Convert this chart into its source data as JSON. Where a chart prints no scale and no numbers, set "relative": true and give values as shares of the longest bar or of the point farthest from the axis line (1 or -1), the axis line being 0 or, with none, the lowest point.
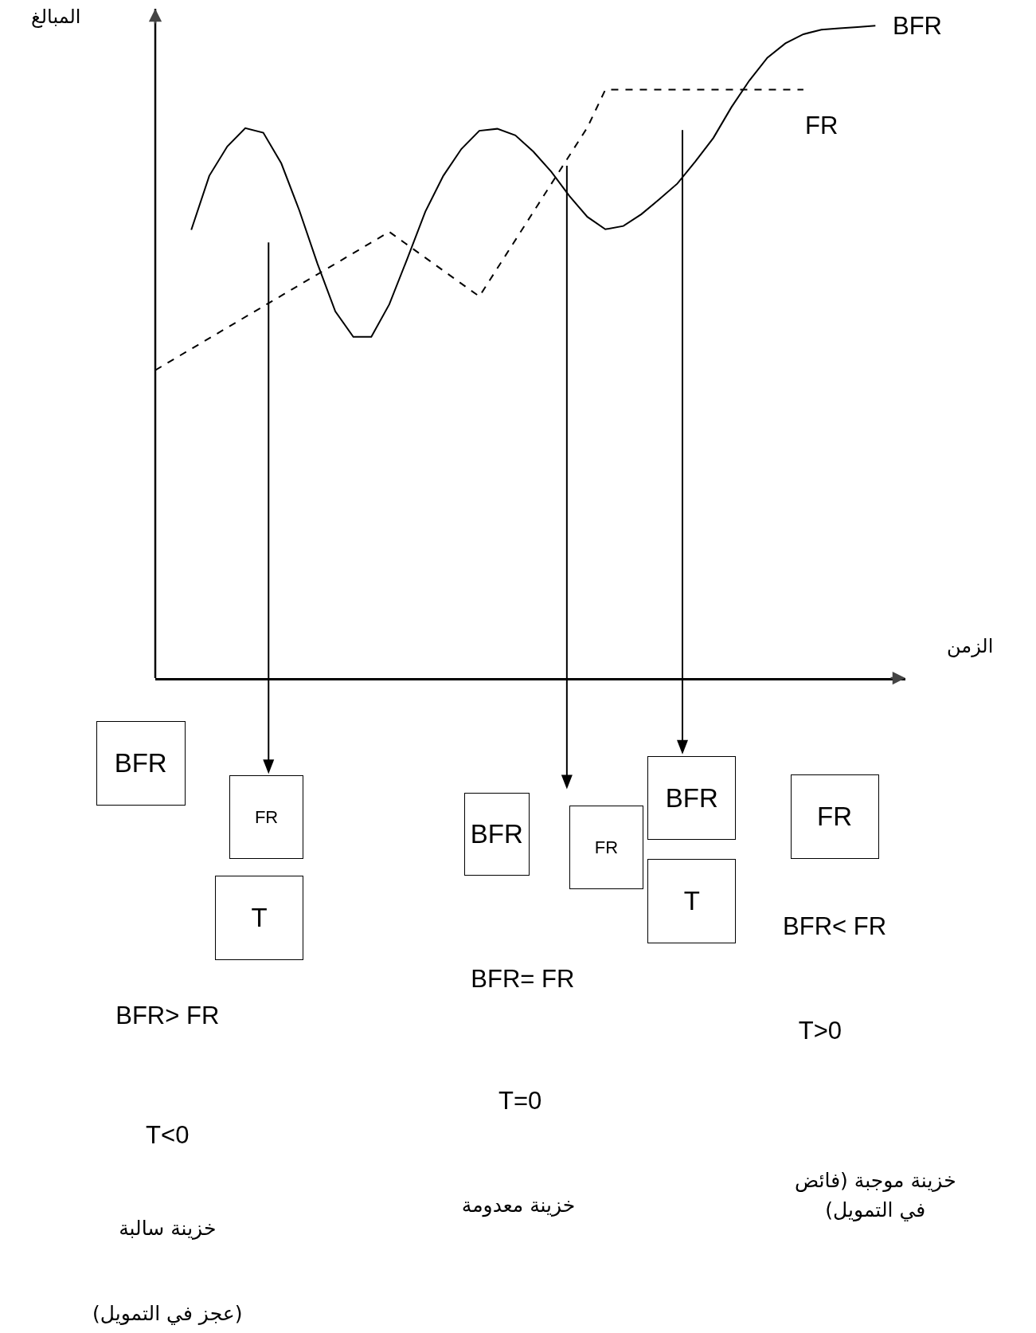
{
  "chart_data": {
    "type": "line",
    "relative": true,
    "xlabel": "الزمن",
    "ylabel": "المبالغ",
    "legend": false,
    "marker": "none",
    "categories": [
      null,
      null,
      null,
      null,
      null,
      null,
      null,
      null,
      null,
      null,
      null,
      null,
      null,
      null,
      null,
      null,
      null,
      null,
      null,
      null,
      null,
      null,
      null,
      null,
      null,
      null,
      null,
      null,
      null,
      null,
      null,
      null,
      null,
      null,
      null,
      null,
      null,
      null,
      null,
      null,
      null
    ],
    "series": [
      {
        "name": "BFR",
        "color": "#000000",
        "line_style": "solid",
        "values": [
          null,
          null,
          0.687,
          0.77,
          0.815,
          0.843,
          0.836,
          0.789,
          0.717,
          0.636,
          0.562,
          0.523,
          0.523,
          0.573,
          0.643,
          0.715,
          0.77,
          0.811,
          0.839,
          0.842,
          0.832,
          0.807,
          0.776,
          0.739,
          0.707,
          0.688,
          0.693,
          0.711,
          0.734,
          0.758,
          0.792,
          0.828,
          0.875,
          0.916,
          0.951,
          0.973,
          0.987,
          0.994,
          0.996,
          0.998,
          1
        ]
      },
      {
        "name": "FR",
        "color": "#000000",
        "line_style": "dashed",
        "values": [
          0.472,
          null,
          null,
          null,
          null,
          null,
          null,
          null,
          null,
          null,
          null,
          null,
          null,
          0.684,
          null,
          null,
          null,
          null,
          0.585,
          null,
          null,
          null,
          null,
          null,
          0.844,
          0.902,
          null,
          null,
          null,
          null,
          null,
          null,
          null,
          null,
          null,
          null,
          0.902,
          null,
          null,
          null,
          null
        ]
      }
    ],
    "annotations": [
      "BFR",
      "FR",
      "T",
      "BFR",
      "FR",
      "BFR",
      "T",
      "FR",
      "BFR> FR",
      "T<0",
      "خزينة سالبة",
      "(عجز في التمويل)",
      "BFR= FR",
      "T=0",
      "خزينة معدومة",
      "BFR< FR",
      "T>0",
      "خزينة موجبة (فائض\nفي التمويل)"
    ]
  }
}
